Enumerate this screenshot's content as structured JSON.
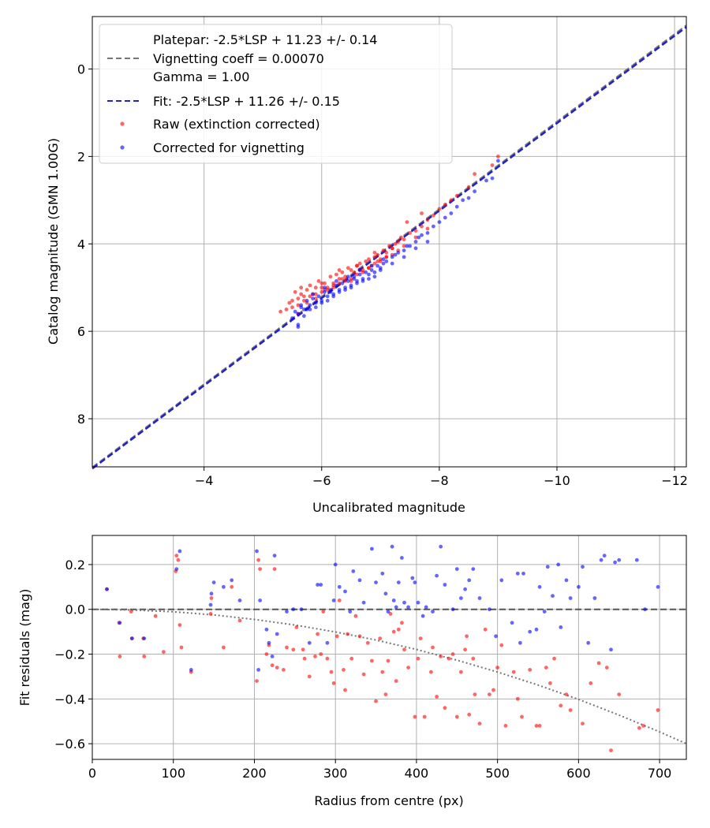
{
  "colors": {
    "raw": "#ff0000",
    "corrected": "#0000ff",
    "fit": "#2222cc",
    "platepar": "#777777",
    "grid": "#b0b0b0"
  },
  "chart_data": [
    {
      "type": "scatter",
      "xlabel": "Uncalibrated magnitude",
      "ylabel": "Catalog magnitude (GMN 1.00G)",
      "xlim": [
        -2.1,
        -12.2
      ],
      "ylim": [
        9.1,
        -1.2
      ],
      "xticks": [
        -4,
        -6,
        -8,
        -10,
        -12
      ],
      "xtick_labels": [
        "−4",
        "−6",
        "−8",
        "−10",
        "−12"
      ],
      "yticks": [
        0,
        2,
        4,
        6,
        8
      ],
      "ytick_labels": [
        "0",
        "2",
        "4",
        "6",
        "8"
      ],
      "grid": true,
      "legend": {
        "position": "top-left",
        "platepar_lines": [
          "Platepar: -2.5*LSP + 11.23 +/- 0.14",
          "Vignetting coeff = 0.00070",
          "Gamma = 1.00"
        ],
        "fit": "Fit: -2.5*LSP + 11.26 +/- 0.15",
        "raw": "Raw (extinction corrected)",
        "corrected": "Corrected for vignetting"
      },
      "lines": [
        {
          "name": "Platepar",
          "style": "dashed",
          "x": [
            -2.1,
            -12.2
          ],
          "y": [
            9.11,
            -1.0
          ]
        },
        {
          "name": "Fit",
          "style": "dashed",
          "x": [
            -2.1,
            -12.2
          ],
          "y": [
            9.14,
            -0.96
          ]
        }
      ],
      "series": [
        {
          "name": "Raw (extinction corrected)",
          "x": [
            -5.3,
            -5.45,
            -5.5,
            -5.55,
            -5.6,
            -5.65,
            -5.7,
            -5.75,
            -5.8,
            -5.85,
            -5.9,
            -5.95,
            -6.0,
            -6.05,
            -6.1,
            -6.15,
            -6.2,
            -6.25,
            -6.3,
            -6.35,
            -6.4,
            -6.45,
            -6.5,
            -6.55,
            -6.6,
            -6.65,
            -6.7,
            -6.75,
            -6.8,
            -6.85,
            -6.9,
            -6.95,
            -7.0,
            -7.05,
            -7.1,
            -7.15,
            -7.2,
            -7.25,
            -7.3,
            -7.35,
            -7.4,
            -7.5,
            -7.6,
            -7.7,
            -7.8,
            -7.9,
            -8.0,
            -8.1,
            -8.3,
            -8.5,
            -5.5,
            -5.6,
            -5.7,
            -5.8,
            -5.9,
            -6.0,
            -6.1,
            -6.2,
            -6.3,
            -6.4,
            -6.5,
            -6.6,
            -6.7,
            -6.8,
            -6.9,
            -7.0,
            -7.1,
            -7.2,
            -7.3,
            -7.4,
            -7.6,
            -7.8,
            -5.6,
            -5.75,
            -5.9,
            -6.05,
            -6.2,
            -6.35,
            -6.5,
            -6.65,
            -6.8,
            -6.95,
            -7.1,
            -5.4,
            -5.65,
            -6.0,
            -6.3,
            -6.6,
            -6.9,
            -7.2,
            -8.6,
            -8.9,
            -9.0,
            -7.45,
            -7.7,
            -8.2
          ],
          "y": [
            5.55,
            5.35,
            5.3,
            5.1,
            5.25,
            5.0,
            5.2,
            5.05,
            4.95,
            5.15,
            5.0,
            4.85,
            5.0,
            4.9,
            5.05,
            4.75,
            4.9,
            4.7,
            4.8,
            4.65,
            4.75,
            4.55,
            4.6,
            4.65,
            4.5,
            4.45,
            4.6,
            4.4,
            4.35,
            4.5,
            4.3,
            4.25,
            4.35,
            4.15,
            4.2,
            4.05,
            4.1,
            4.0,
            3.95,
            3.85,
            3.9,
            3.75,
            3.7,
            3.6,
            3.45,
            3.35,
            3.2,
            3.1,
            2.9,
            2.7,
            5.45,
            5.4,
            5.3,
            5.2,
            5.15,
            5.1,
            5.0,
            4.95,
            4.9,
            4.85,
            4.8,
            4.7,
            4.65,
            4.55,
            4.45,
            4.4,
            4.3,
            4.25,
            4.15,
            4.05,
            3.85,
            3.65,
            5.6,
            5.35,
            5.25,
            5.05,
            5.0,
            4.8,
            4.85,
            4.6,
            4.55,
            4.4,
            4.3,
            5.5,
            5.15,
            4.9,
            4.6,
            4.5,
            4.2,
            4.1,
            2.4,
            2.2,
            2.0,
            3.5,
            3.3,
            3.0
          ]
        },
        {
          "name": "Corrected for vignetting",
          "x": [
            -5.5,
            -5.55,
            -5.6,
            -5.65,
            -5.7,
            -5.75,
            -5.8,
            -5.85,
            -5.9,
            -5.95,
            -6.0,
            -6.05,
            -6.1,
            -6.15,
            -6.2,
            -6.25,
            -6.3,
            -6.35,
            -6.4,
            -6.45,
            -6.5,
            -6.55,
            -6.6,
            -6.65,
            -6.7,
            -6.75,
            -6.8,
            -6.85,
            -6.9,
            -6.95,
            -7.0,
            -7.05,
            -7.1,
            -7.2,
            -7.3,
            -7.4,
            -7.5,
            -7.6,
            -7.7,
            -7.8,
            -7.9,
            -8.0,
            -8.1,
            -8.2,
            -8.3,
            -8.4,
            -8.6,
            -8.8,
            -9.0,
            -5.6,
            -5.7,
            -5.8,
            -5.9,
            -6.0,
            -6.1,
            -6.2,
            -6.3,
            -6.4,
            -6.5,
            -6.6,
            -6.7,
            -6.8,
            -6.9,
            -7.0,
            -7.2,
            -7.4,
            -7.6,
            -7.8,
            -5.65,
            -5.85,
            -6.05,
            -6.25,
            -6.45,
            -6.65,
            -6.85,
            -7.05,
            -7.25,
            -7.45,
            -7.65,
            -8.5,
            -8.9,
            -5.6,
            -5.75,
            -6.15,
            -6.55
          ],
          "y": [
            5.7,
            5.55,
            5.6,
            5.45,
            5.5,
            5.3,
            5.4,
            5.25,
            5.35,
            5.2,
            5.3,
            5.1,
            5.2,
            5.05,
            5.15,
            4.95,
            5.05,
            4.9,
            5.0,
            4.85,
            4.95,
            4.75,
            4.85,
            4.7,
            4.8,
            4.65,
            4.7,
            4.6,
            4.65,
            4.5,
            4.55,
            4.45,
            4.4,
            4.3,
            4.2,
            4.15,
            4.05,
            3.95,
            3.8,
            3.75,
            3.6,
            3.5,
            3.4,
            3.3,
            3.15,
            3.0,
            2.8,
            2.55,
            2.1,
            5.85,
            5.65,
            5.5,
            5.45,
            5.35,
            5.3,
            5.2,
            5.1,
            5.05,
            5.0,
            4.9,
            4.85,
            4.8,
            4.75,
            4.6,
            4.45,
            4.3,
            4.1,
            3.95,
            5.4,
            5.15,
            5.0,
            4.85,
            4.75,
            4.6,
            4.5,
            4.35,
            4.25,
            4.05,
            3.85,
            2.95,
            2.5,
            5.9,
            5.5,
            5.1,
            4.8
          ]
        }
      ]
    },
    {
      "type": "scatter",
      "xlabel": "Radius from centre (px)",
      "ylabel": "Fit residuals (mag)",
      "xlim": [
        0,
        733
      ],
      "ylim": [
        -0.67,
        0.33
      ],
      "xticks": [
        0,
        100,
        200,
        300,
        400,
        500,
        600,
        700
      ],
      "xtick_labels": [
        "0",
        "100",
        "200",
        "300",
        "400",
        "500",
        "600",
        "700"
      ],
      "yticks": [
        0.2,
        0.0,
        -0.2,
        -0.4,
        -0.6
      ],
      "ytick_labels": [
        "0.2",
        "0.0",
        "−0.2",
        "−0.4",
        "−0.6"
      ],
      "grid": true,
      "lines": [
        {
          "name": "zero",
          "style": "dashed",
          "x": [
            0,
            733
          ],
          "y": [
            0,
            0
          ]
        },
        {
          "name": "vignetting",
          "style": "dotted",
          "x": [
            0,
            50,
            100,
            150,
            200,
            250,
            300,
            350,
            400,
            450,
            500,
            550,
            600,
            650,
            700,
            733
          ],
          "y": [
            0,
            -0.003,
            -0.011,
            -0.025,
            -0.045,
            -0.07,
            -0.101,
            -0.137,
            -0.179,
            -0.227,
            -0.28,
            -0.338,
            -0.402,
            -0.472,
            -0.547,
            -0.6
          ]
        }
      ],
      "series": [
        {
          "name": "Raw (extinction corrected)",
          "x": [
            18,
            33,
            34,
            48,
            49,
            63,
            64,
            78,
            88,
            103,
            104,
            106,
            108,
            110,
            122,
            146,
            147,
            162,
            172,
            182,
            203,
            205,
            207,
            215,
            218,
            222,
            225,
            228,
            236,
            240,
            248,
            252,
            260,
            262,
            268,
            275,
            278,
            282,
            285,
            290,
            295,
            298,
            302,
            305,
            310,
            312,
            315,
            320,
            325,
            330,
            335,
            340,
            345,
            350,
            355,
            358,
            362,
            365,
            368,
            372,
            375,
            378,
            382,
            385,
            390,
            398,
            402,
            405,
            410,
            418,
            420,
            425,
            430,
            435,
            440,
            445,
            450,
            455,
            460,
            462,
            465,
            470,
            472,
            478,
            485,
            490,
            495,
            500,
            505,
            510,
            520,
            525,
            530,
            540,
            548,
            552,
            560,
            565,
            570,
            578,
            585,
            590,
            605,
            615,
            625,
            635,
            640,
            650,
            675,
            680,
            698
          ],
          "y": [
            0.09,
            -0.06,
            -0.21,
            -0.01,
            -0.13,
            -0.13,
            -0.21,
            -0.03,
            -0.19,
            0.17,
            0.24,
            0.22,
            -0.07,
            -0.17,
            -0.28,
            -0.02,
            0.05,
            -0.17,
            0.1,
            -0.05,
            -0.32,
            0.22,
            0.18,
            -0.2,
            -0.16,
            -0.25,
            0.18,
            -0.26,
            -0.27,
            -0.17,
            -0.18,
            -0.08,
            -0.18,
            -0.22,
            -0.3,
            -0.21,
            -0.11,
            -0.2,
            -0.01,
            -0.22,
            -0.28,
            -0.33,
            -0.12,
            0.04,
            -0.27,
            -0.36,
            -0.11,
            -0.22,
            -0.03,
            -0.12,
            -0.29,
            -0.15,
            -0.23,
            -0.41,
            -0.13,
            -0.28,
            -0.38,
            -0.23,
            -0.02,
            -0.1,
            -0.32,
            -0.09,
            -0.06,
            -0.18,
            -0.26,
            -0.48,
            -0.22,
            -0.13,
            -0.48,
            -0.28,
            -0.17,
            -0.39,
            -0.21,
            -0.44,
            -0.22,
            -0.2,
            -0.48,
            -0.28,
            -0.18,
            -0.12,
            -0.47,
            -0.22,
            -0.38,
            -0.51,
            -0.09,
            -0.38,
            -0.36,
            -0.26,
            -0.16,
            -0.52,
            -0.28,
            -0.4,
            -0.48,
            -0.27,
            -0.52,
            -0.52,
            -0.26,
            -0.33,
            -0.22,
            -0.43,
            -0.38,
            -0.45,
            -0.51,
            -0.33,
            -0.24,
            -0.26,
            -0.63,
            -0.38,
            -0.53,
            -0.52,
            -0.45
          ]
        },
        {
          "name": "Corrected for vignetting",
          "x": [
            18,
            34,
            49,
            64,
            104,
            108,
            122,
            146,
            147,
            150,
            162,
            172,
            182,
            203,
            205,
            207,
            215,
            218,
            222,
            225,
            228,
            240,
            248,
            258,
            268,
            278,
            282,
            290,
            298,
            300,
            305,
            312,
            318,
            322,
            330,
            335,
            345,
            350,
            358,
            362,
            365,
            370,
            372,
            375,
            378,
            382,
            385,
            390,
            395,
            398,
            402,
            408,
            412,
            420,
            425,
            430,
            435,
            445,
            450,
            455,
            460,
            465,
            470,
            478,
            490,
            498,
            505,
            518,
            525,
            528,
            532,
            540,
            548,
            552,
            558,
            562,
            568,
            575,
            578,
            585,
            590,
            600,
            605,
            612,
            620,
            628,
            632,
            640,
            645,
            650,
            672,
            682,
            698
          ],
          "y": [
            0.09,
            -0.06,
            -0.13,
            -0.13,
            0.18,
            0.26,
            -0.27,
            0.02,
            0.07,
            0.12,
            0.1,
            0.13,
            0.04,
            0.26,
            -0.27,
            0.04,
            -0.09,
            -0.15,
            -0.21,
            0.24,
            -0.11,
            -0.01,
            0.0,
            0.0,
            -0.15,
            0.11,
            0.11,
            -0.15,
            0.04,
            0.2,
            0.1,
            0.08,
            -0.01,
            0.17,
            0.13,
            0.03,
            0.27,
            0.12,
            0.16,
            0.07,
            -0.01,
            0.28,
            0.04,
            0.01,
            0.12,
            0.23,
            0.03,
            0.01,
            0.14,
            0.12,
            0.03,
            -0.03,
            0.01,
            -0.01,
            0.15,
            0.28,
            0.11,
            0.0,
            0.18,
            0.05,
            0.09,
            0.13,
            0.18,
            0.05,
            0.0,
            -0.12,
            0.13,
            -0.06,
            0.16,
            -0.15,
            0.16,
            -0.1,
            -0.09,
            0.1,
            -0.01,
            0.19,
            0.06,
            0.2,
            -0.08,
            0.13,
            0.05,
            0.1,
            0.19,
            -0.15,
            0.05,
            0.22,
            0.24,
            -0.18,
            0.21,
            0.22,
            0.22,
            0.0,
            0.1
          ]
        }
      ]
    }
  ]
}
